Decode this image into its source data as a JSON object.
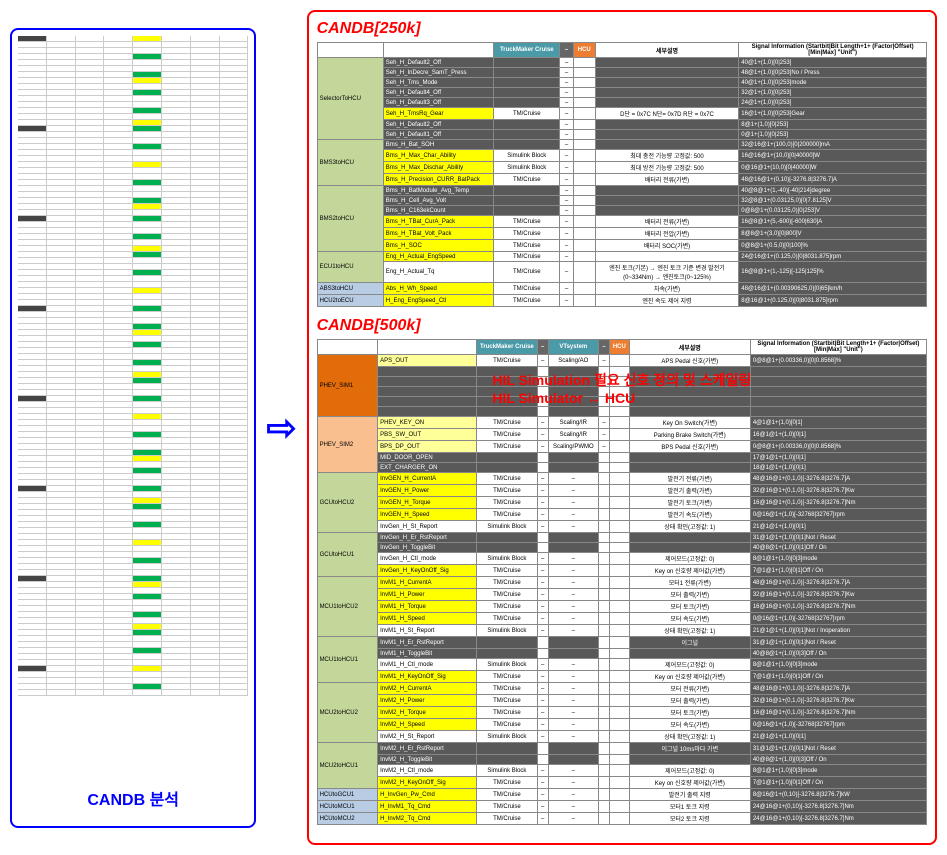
{
  "left_label": "CANDB 분석",
  "arrow": "⇨",
  "candb250_title": "CANDB[250k]",
  "candb500_title": "CANDB[500k]",
  "overlay_line1": "HIL Simulation 필요 신호 정의 및 스케일링",
  "overlay_line2": "HIL Simulator ↔ HCU",
  "t250": {
    "hdr_tm": "TruckMaker Cruise",
    "hdr_dash": "–",
    "hdr_hcu": "HCU",
    "hdr_desc": "세부설명",
    "hdr_sig": "Signal Information (Startbit|Bit Length+1+ (Factor|Offset) [Min|Max] \"Unit\")",
    "groups": [
      {
        "name": "SelectorToHCU",
        "color": "row-olive",
        "rows": [
          {
            "sig": "Seh_H_Default2_Off",
            "c": "row-dark",
            "tm": "",
            "d": "–",
            "desc": "",
            "info": "40@1+(1,0)[0|253]"
          },
          {
            "sig": "Seh_H_InDecre_SamT_Press",
            "c": "row-dark",
            "tm": "",
            "d": "–",
            "desc": "",
            "info": "48@1+(1,0)[0|253]No / Press"
          },
          {
            "sig": "Seh_H_Tms_Mode",
            "c": "row-dark",
            "tm": "",
            "d": "–",
            "desc": "",
            "info": "40@1+(1,0)[0|253]mode"
          },
          {
            "sig": "Seh_H_Default4_Off",
            "c": "row-dark",
            "tm": "",
            "d": "–",
            "desc": "",
            "info": "32@1+(1,0)[0|253]"
          },
          {
            "sig": "Seh_H_Default3_Off",
            "c": "row-dark",
            "tm": "",
            "d": "–",
            "desc": "",
            "info": "24@1+(1,0)[0|253]"
          },
          {
            "sig": "Seh_H_TmsRq_Gear",
            "c": "row-yellow",
            "tm": "TM/Cruise",
            "d": "–",
            "desc": "D단 = 0x7C  N단= 0x7D  R단 = 0x7C",
            "info": "16@1+(1,0)[0|253]Gear"
          },
          {
            "sig": "Seh_H_Default2_Off",
            "c": "row-dark",
            "tm": "",
            "d": "–",
            "desc": "",
            "info": "8@1+(1,0)[0|253]"
          },
          {
            "sig": "Seh_H_Default1_Off",
            "c": "row-dark",
            "tm": "",
            "d": "–",
            "desc": "",
            "info": "0@1+(1,0)[0|253]"
          }
        ]
      },
      {
        "name": "BMS3toHCU",
        "color": "row-olive",
        "rows": [
          {
            "sig": "Bms_H_Bat_SOH",
            "c": "row-dark",
            "tm": "",
            "d": "–",
            "desc": "",
            "info": "32@16@1+(100,0)[0|200000]mA"
          },
          {
            "sig": "Bms_H_Max_Char_Ability",
            "c": "row-yellow",
            "tm": "Simulink Block",
            "d": "–",
            "desc": "최대 충전 기능량 고정값: 500",
            "info": "16@16@1+(10,0)[0|40000]W"
          },
          {
            "sig": "Bms_H_Max_Dischar_Ability",
            "c": "row-yellow",
            "tm": "Simulink Block",
            "d": "–",
            "desc": "최대 방전 기능량 고정값: 500",
            "info": "0@16@1+(10,0)[0|40000]W"
          },
          {
            "sig": "Bms_H_Precision_CURR_BatPack",
            "c": "row-yellow",
            "tm": "TM/Cruise",
            "d": "–",
            "desc": "배터리 전류(가변)",
            "info": "48@16@1+(0,10)[-3276.8|3276.7]A"
          }
        ]
      },
      {
        "name": "BMS2toHCU",
        "color": "row-olive",
        "rows": [
          {
            "sig": "Bms_H_BatModule_Avg_Temp",
            "c": "row-dark",
            "tm": "",
            "d": "–",
            "desc": "",
            "info": "40@8@1+(1,-40)[-40|214]degree"
          },
          {
            "sig": "Bms_H_Cell_Avg_Volt",
            "c": "row-dark",
            "tm": "",
            "d": "–",
            "desc": "",
            "info": "32@8@1+(0.03125,0)[0|7.8125]V"
          },
          {
            "sig": "Bms_H_C163ekCount",
            "c": "row-dark",
            "tm": "",
            "d": "–",
            "desc": "",
            "info": "0@8@1+(0.03125,0)[0|253]V"
          },
          {
            "sig": "Bms_H_TBat_CurA_Pack",
            "c": "row-yellow",
            "tm": "TM/Cruise",
            "d": "–",
            "desc": "배터리 전류(가변)",
            "info": "16@8@1+(5,-600)[-600|630]A"
          },
          {
            "sig": "Bms_H_TBat_Volt_Pack",
            "c": "row-yellow",
            "tm": "TM/Cruise",
            "d": "–",
            "desc": "배터리 전압(가변)",
            "info": "8@8@1+(3,0)[0|800]V"
          },
          {
            "sig": "Bms_H_SOC",
            "c": "row-yellow",
            "tm": "TM/Cruise",
            "d": "–",
            "desc": "배터리 SOC(가변)",
            "info": "0@8@1+(0.5,0)[0|100]%"
          }
        ]
      },
      {
        "name": "ECU1toHCU",
        "color": "row-olive",
        "rows": [
          {
            "sig": "Eng_H_Actual_EngSpeed",
            "c": "row-yellow",
            "tm": "TM/Cruise",
            "d": "–",
            "desc": "",
            "info": "24@16@1+(0.125,0)[0|8031.875]rpm"
          },
          {
            "sig": "Eng_H_Actual_Tq",
            "c": "row-white",
            "tm": "TM/Cruise",
            "d": "–",
            "desc": "엔진 토크(기본) → 엔진 토크 기준 변경 발전기(0~334Nm) → 엔진토크(0~125%)",
            "info": "16@8@1+(1,-125)[-125|125]%"
          }
        ]
      },
      {
        "name": "ABS3toHCU",
        "color": "row-blue",
        "rows": [
          {
            "sig": "Abs_H_Wh_Speed",
            "c": "row-yellow",
            "tm": "TM/Cruise",
            "d": "–",
            "desc": "차속(가변)",
            "info": "48@16@1+(0.00390625,0)[0|65]km/h"
          }
        ]
      },
      {
        "name": "HCU2toECU",
        "color": "row-blue",
        "rows": [
          {
            "sig": "H_Eng_EngSpeed_Ctl",
            "c": "row-yellow",
            "tm": "TM/Cruise",
            "d": "–",
            "desc": "엔진 속도 제어 지령",
            "info": "8@16@1+(0.125,0)[0|8031.875]rpm"
          }
        ]
      }
    ]
  },
  "t500": {
    "hdr_tm": "TruckMaker Cruise",
    "hdr_vt": "VTsystem",
    "hdr_hcu": "HCU",
    "hdr_desc": "세부설명",
    "hdr_sig": "Signal Information (Startbit|Bit Length+1+ (Factor|Offset) [Min|Max] \"Unit\")",
    "groups": [
      {
        "name": "PHEV_SIM1",
        "color": "row-darkorange",
        "rows": [
          {
            "sig": "APS_OUT",
            "c": "row-lightyellow",
            "tm": "TM/Cruise",
            "d": "–",
            "vt": "Scaling/AO",
            "h": "–",
            "desc": "APS Pedal 신호(가변)",
            "info": "0@8@1+(0.00336,0)[0|0.8568]%"
          },
          {
            "sig": "",
            "c": "row-dark",
            "tm": "",
            "d": "",
            "vt": "",
            "h": "",
            "desc": "",
            "info": ""
          },
          {
            "sig": "",
            "c": "row-dark",
            "tm": "",
            "d": "",
            "vt": "",
            "h": "",
            "desc": "",
            "info": ""
          },
          {
            "sig": "",
            "c": "row-dark",
            "tm": "",
            "d": "",
            "vt": "",
            "h": "",
            "desc": "",
            "info": ""
          },
          {
            "sig": "",
            "c": "row-dark",
            "tm": "",
            "d": "",
            "vt": "",
            "h": "",
            "desc": "",
            "info": ""
          },
          {
            "sig": "",
            "c": "row-dark",
            "tm": "",
            "d": "",
            "vt": "",
            "h": "",
            "desc": "",
            "info": ""
          }
        ]
      },
      {
        "name": "PHEV_SIM2",
        "color": "row-orange",
        "rows": [
          {
            "sig": "PHEV_KEY_ON",
            "c": "row-lightyellow",
            "tm": "TM/Cruise",
            "d": "–",
            "vt": "Scaling/IR",
            "h": "–",
            "desc": "Key On Switch(가변)",
            "info": "4@1@1+(1,0)[0|1]"
          },
          {
            "sig": "PBS_SW_OUT",
            "c": "row-lightyellow",
            "tm": "TM/Cruise",
            "d": "–",
            "vt": "Scaling/IR",
            "h": "–",
            "desc": "Parking Brake Switch(가변)",
            "info": "16@1@1+(1,0)[0|1]"
          },
          {
            "sig": "BPS_DP_OUT",
            "c": "row-lightyellow",
            "tm": "TM/Cruise",
            "d": "–",
            "vt": "Scaling/PWMO",
            "h": "–",
            "desc": "BPS Pedal 신호(가변)",
            "info": "0@8@1+(0.00336,0)[0|0.8568]%"
          },
          {
            "sig": "MID_DOOR_OPEN",
            "c": "row-dark",
            "tm": "",
            "d": "",
            "vt": "",
            "h": "",
            "desc": "",
            "info": "17@1@1+(1,0)[0|1]"
          },
          {
            "sig": "EXT_CHARGER_ON",
            "c": "row-dark",
            "tm": "",
            "d": "",
            "vt": "",
            "h": "",
            "desc": "",
            "info": "18@1@1+(1,0)[0|1]"
          }
        ]
      },
      {
        "name": "GCUtoHCU2",
        "color": "row-olive",
        "rows": [
          {
            "sig": "InvGEN_H_CurrentA",
            "c": "row-yellow",
            "tm": "TM/Cruise",
            "d": "–",
            "vt": "–",
            "h": "",
            "desc": "발전기 전류(가변)",
            "info": "48@16@1+(0,1,0)[-3276.8|3276.7]A"
          },
          {
            "sig": "InvGEN_H_Power",
            "c": "row-yellow",
            "tm": "TM/Cruise",
            "d": "–",
            "vt": "–",
            "h": "",
            "desc": "발전기 출력(가변)",
            "info": "32@16@1+(0,1,0)[-3276.8|3276.7]Kw"
          },
          {
            "sig": "InvGEN_H_Torque",
            "c": "row-yellow",
            "tm": "TM/Cruise",
            "d": "–",
            "vt": "–",
            "h": "",
            "desc": "발전기 토크(가변)",
            "info": "16@16@1+(0,1,0)[-3276.8|3276.7]Nm"
          },
          {
            "sig": "InvGEN_H_Speed",
            "c": "row-yellow",
            "tm": "TM/Cruise",
            "d": "–",
            "vt": "–",
            "h": "",
            "desc": "발전기 속도(가변)",
            "info": "0@16@1+(1,0)[-32768|32767]rpm"
          },
          {
            "sig": "InvGen_H_St_Report",
            "c": "row-white",
            "tm": "Simulink Block",
            "d": "–",
            "vt": "–",
            "h": "",
            "desc": "상태 확인(고정값: 1)",
            "info": "21@1@1+(1,0)[0|1]"
          }
        ]
      },
      {
        "name": "GCUtoHCU1",
        "color": "row-olive",
        "rows": [
          {
            "sig": "InvGen_H_Er_RstReport",
            "c": "row-dark",
            "tm": "",
            "d": "",
            "vt": "",
            "h": "",
            "desc": "",
            "info": "31@1@1+(1,0)[0|1]Not / Reset"
          },
          {
            "sig": "InvGen_H_ToggleBit",
            "c": "row-dark",
            "tm": "",
            "d": "",
            "vt": "",
            "h": "",
            "desc": "",
            "info": "40@8@1+(1,0)[0|1]Off / On"
          },
          {
            "sig": "InvGen_H_Ctl_mode",
            "c": "row-white",
            "tm": "Simulink Block",
            "d": "–",
            "vt": "–",
            "h": "",
            "desc": "제어모드(고정값: 0)",
            "info": "8@1@1+(1,0)[0|3]mode"
          },
          {
            "sig": "InvGen_H_KeyOnOff_Sig",
            "c": "row-yellow",
            "tm": "TM/Cruise",
            "d": "–",
            "vt": "–",
            "h": "",
            "desc": "Key on 신호량 제어값(가변)",
            "info": "7@1@1+(1,0)[0|1]Off / On"
          }
        ]
      },
      {
        "name": "MCU1toHCU2",
        "color": "row-olive",
        "rows": [
          {
            "sig": "InvM1_H_CurrentA",
            "c": "row-yellow",
            "tm": "TM/Cruise",
            "d": "–",
            "vt": "–",
            "h": "",
            "desc": "모터1 전류(가변)",
            "info": "48@16@1+(0,1,0)[-3276.8|3276.7]A"
          },
          {
            "sig": "InvM1_H_Power",
            "c": "row-yellow",
            "tm": "TM/Cruise",
            "d": "–",
            "vt": "–",
            "h": "",
            "desc": "모터 출력(가변)",
            "info": "32@16@1+(0,1,0)[-3276.8|3276.7]Kw"
          },
          {
            "sig": "InvM1_H_Torque",
            "c": "row-yellow",
            "tm": "TM/Cruise",
            "d": "–",
            "vt": "–",
            "h": "",
            "desc": "모터 토크(가변)",
            "info": "16@16@1+(0,1,0)[-3276.8|3276.7]Nm"
          },
          {
            "sig": "InvM1_H_Speed",
            "c": "row-yellow",
            "tm": "TM/Cruise",
            "d": "–",
            "vt": "–",
            "h": "",
            "desc": "모터 속도(가변)",
            "info": "0@16@1+(1,0)[-32768|32767]rpm"
          },
          {
            "sig": "InvM1_H_St_Report",
            "c": "row-white",
            "tm": "Simulink Block",
            "d": "–",
            "vt": "–",
            "h": "",
            "desc": "상태 확인(고정값: 1)",
            "info": "21@1@1+(1,0)[0|1]Not / Inoperation"
          }
        ]
      },
      {
        "name": "MCU1toHCU1",
        "color": "row-olive",
        "rows": [
          {
            "sig": "InvM1_H_Er_RstReport",
            "c": "row-dark",
            "tm": "",
            "d": "",
            "vt": "",
            "h": "",
            "desc": "이그널",
            "info": "31@1@1+(1,0)[0|1]Not / Reset"
          },
          {
            "sig": "InvM1_H_ToggleBit",
            "c": "row-dark",
            "tm": "",
            "d": "",
            "vt": "",
            "h": "",
            "desc": "",
            "info": "40@8@1+(1,0)[0|3]Off / On"
          },
          {
            "sig": "InvM1_H_Ctl_mode",
            "c": "row-white",
            "tm": "Simulink Block",
            "d": "–",
            "vt": "–",
            "h": "",
            "desc": "제어모드(고정값: 0)",
            "info": "8@1@1+(1,0)[0|3]mode"
          },
          {
            "sig": "InvM1_H_KeyOnOff_Sig",
            "c": "row-yellow",
            "tm": "TM/Cruise",
            "d": "–",
            "vt": "–",
            "h": "",
            "desc": "Key on 신호량 제어값(가변)",
            "info": "7@1@1+(1,0)[0|1]Off / On"
          }
        ]
      },
      {
        "name": "MCU2toHCU2",
        "color": "row-olive",
        "rows": [
          {
            "sig": "InvM2_H_CurrentA",
            "c": "row-yellow",
            "tm": "TM/Cruise",
            "d": "–",
            "vt": "–",
            "h": "",
            "desc": "모터 전류(가변)",
            "info": "48@16@1+(0,1,0)[-3276.8|3276.7]A"
          },
          {
            "sig": "InvM2_H_Power",
            "c": "row-yellow",
            "tm": "TM/Cruise",
            "d": "–",
            "vt": "–",
            "h": "",
            "desc": "모터 출력(가변)",
            "info": "32@16@1+(0,1,0)[-3276.8|3276.7]Kw"
          },
          {
            "sig": "InvM2_H_Torque",
            "c": "row-yellow",
            "tm": "TM/Cruise",
            "d": "–",
            "vt": "–",
            "h": "",
            "desc": "모터 토크(가변)",
            "info": "16@16@1+(0,1,0)[-3276.8|3276.7]Nm"
          },
          {
            "sig": "InvM2_H_Speed",
            "c": "row-yellow",
            "tm": "TM/Cruise",
            "d": "–",
            "vt": "–",
            "h": "",
            "desc": "모터 속도(가변)",
            "info": "0@16@1+(1,0)[-32768|32767]rpm"
          },
          {
            "sig": "InvM2_H_St_Report",
            "c": "row-white",
            "tm": "Simulink Block",
            "d": "–",
            "vt": "–",
            "h": "",
            "desc": "상태 확인(고정값: 1)",
            "info": "21@1@1+(1,0)[0|1]"
          }
        ]
      },
      {
        "name": "MCU2toHCU1",
        "color": "row-olive",
        "rows": [
          {
            "sig": "InvM2_H_Er_RstReport",
            "c": "row-dark",
            "tm": "",
            "d": "",
            "vt": "",
            "h": "",
            "desc": "이그널 10ms마다 가변",
            "info": "31@1@1+(1,0)[0|1]Not / Reset"
          },
          {
            "sig": "InvM2_H_ToggleBit",
            "c": "row-dark",
            "tm": "",
            "d": "",
            "vt": "",
            "h": "",
            "desc": "",
            "info": "40@8@1+(1,0)[0|3]Off / On"
          },
          {
            "sig": "InvM2_H_Ctl_mode",
            "c": "row-white",
            "tm": "Simulink Block",
            "d": "–",
            "vt": "–",
            "h": "",
            "desc": "제어모드(고정값: 0)",
            "info": "8@1@1+(1,0)[0|3]mode"
          },
          {
            "sig": "InvM2_H_KeyOnOff_Sig",
            "c": "row-yellow",
            "tm": "TM/Cruise",
            "d": "–",
            "vt": "–",
            "h": "",
            "desc": "Key on 신호량 제어값(가변)",
            "info": "7@1@1+(1,0)[0|1]Off / On"
          }
        ]
      },
      {
        "name": "HCUtoGCU1",
        "color": "row-blue",
        "rows": [
          {
            "sig": "H_InvGen_Pw_Cmd",
            "c": "row-yellow",
            "tm": "TM/Cruise",
            "d": "–",
            "vt": "–",
            "h": "",
            "desc": "발전기 출력 지령",
            "info": "8@16@1+(0,10)[-3276.8|3276.7]kW"
          }
        ]
      },
      {
        "name": "HCUtoMCU1",
        "color": "row-blue",
        "rows": [
          {
            "sig": "H_InvM1_Tq_Cmd",
            "c": "row-yellow",
            "tm": "TM/Cruise",
            "d": "–",
            "vt": "–",
            "h": "",
            "desc": "모터1 토크 지령",
            "info": "24@16@1+(0,10)[-3276.8|3276.7]Nm"
          }
        ]
      },
      {
        "name": "HCUtoMCU2",
        "color": "row-blue",
        "rows": [
          {
            "sig": "H_InvM2_Tq_Cmd",
            "c": "row-yellow",
            "tm": "TM/Cruise",
            "d": "–",
            "vt": "–",
            "h": "",
            "desc": "모터2 토크 지령",
            "info": "24@16@1+(0,10)[-3276.8|3276.7]Nm"
          }
        ]
      }
    ]
  },
  "left_rows_count": 110
}
